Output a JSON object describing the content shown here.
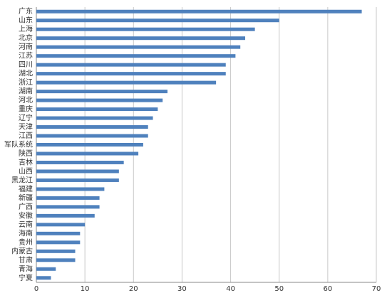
{
  "chart_data": {
    "type": "barh",
    "categories": [
      "广东",
      "山东",
      "上海",
      "北京",
      "河南",
      "江苏",
      "四川",
      "湖北",
      "浙江",
      "湖南",
      "河北",
      "重庆",
      "辽宁",
      "天津",
      "江西",
      "军队系统",
      "陕西",
      "吉林",
      "山西",
      "黑龙江",
      "福建",
      "新疆",
      "广西",
      "安徽",
      "云南",
      "海南",
      "贵州",
      "内蒙古",
      "甘肃",
      "青海",
      "宁夏"
    ],
    "values": [
      67,
      50,
      45,
      43,
      42,
      41,
      39,
      39,
      37,
      27,
      26,
      25,
      24,
      23,
      23,
      22,
      21,
      18,
      17,
      17,
      14,
      13,
      13,
      12,
      10,
      9,
      9,
      8,
      8,
      4,
      3
    ],
    "color": "#4f81bd",
    "xlim": [
      0,
      70
    ],
    "xticks": [
      0,
      10,
      20,
      30,
      40,
      50,
      60,
      70
    ],
    "grid": true
  }
}
